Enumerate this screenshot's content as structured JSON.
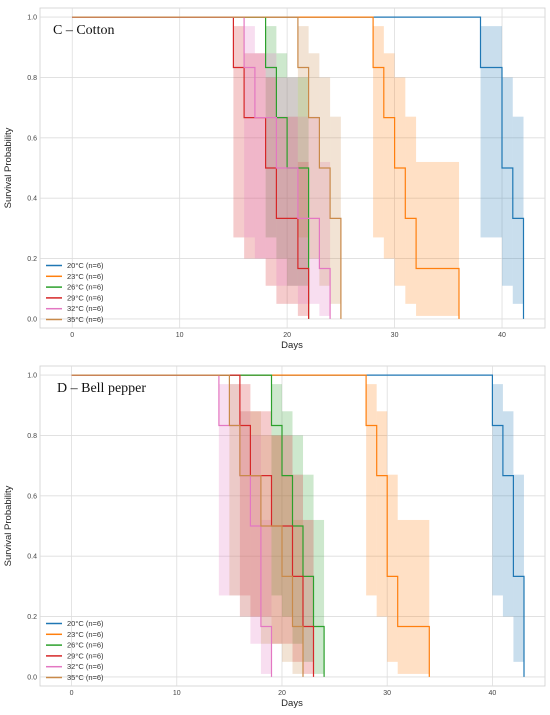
{
  "chart_data": [
    {
      "type": "line",
      "title": "C – Cotton",
      "xlabel": "Days",
      "ylabel": "Survival Probability",
      "xlim": [
        -3,
        44
      ],
      "ylim": [
        -0.03,
        1.03
      ],
      "xticks": [
        0,
        10,
        20,
        30,
        40
      ],
      "yticks": [
        0.0,
        0.2,
        0.4,
        0.6,
        0.8,
        1.0
      ],
      "grid": true,
      "legend_position": "lower-left",
      "series": [
        {
          "name": "20°C (n=6)",
          "color": "#1f77b4",
          "x": [
            0,
            38,
            38,
            40,
            40,
            41,
            41,
            42,
            42
          ],
          "y": [
            1.0,
            1.0,
            0.833,
            0.833,
            0.5,
            0.5,
            0.333,
            0.333,
            0.0
          ],
          "ci_x": [
            38,
            40,
            41,
            42
          ],
          "ci_lo": [
            0.27,
            0.11,
            0.05,
            0.0
          ],
          "ci_hi": [
            0.97,
            0.8,
            0.67,
            0.67
          ]
        },
        {
          "name": "23°C (n=6)",
          "color": "#ff7f0e",
          "x": [
            0,
            28,
            28,
            29,
            29,
            30,
            30,
            31,
            31,
            32,
            32,
            36,
            36
          ],
          "y": [
            1.0,
            1.0,
            0.833,
            0.833,
            0.667,
            0.667,
            0.5,
            0.5,
            0.333,
            0.333,
            0.167,
            0.167,
            0.0
          ],
          "ci_x": [
            28,
            29,
            30,
            31,
            32,
            36
          ],
          "ci_lo": [
            0.27,
            0.2,
            0.11,
            0.05,
            0.01,
            0.0
          ],
          "ci_hi": [
            0.97,
            0.88,
            0.8,
            0.67,
            0.52,
            0.52
          ]
        },
        {
          "name": "26°C (n=6)",
          "color": "#2ca02c",
          "x": [
            0,
            18,
            18,
            19,
            19,
            20,
            20,
            22,
            22
          ],
          "y": [
            1.0,
            1.0,
            0.833,
            0.833,
            0.667,
            0.667,
            0.5,
            0.5,
            0.0
          ],
          "ci_x": [
            18,
            19,
            20,
            22
          ],
          "ci_lo": [
            0.27,
            0.2,
            0.11,
            0.0
          ],
          "ci_hi": [
            0.97,
            0.88,
            0.8,
            0.8
          ]
        },
        {
          "name": "29°C (n=6)",
          "color": "#d62728",
          "x": [
            0,
            15,
            15,
            16,
            16,
            18,
            18,
            19,
            19,
            21,
            21,
            22,
            22
          ],
          "y": [
            1.0,
            1.0,
            0.833,
            0.833,
            0.667,
            0.667,
            0.5,
            0.5,
            0.333,
            0.333,
            0.167,
            0.167,
            0.0
          ],
          "ci_x": [
            15,
            16,
            18,
            19,
            21,
            22
          ],
          "ci_lo": [
            0.27,
            0.2,
            0.11,
            0.05,
            0.01,
            0.0
          ],
          "ci_hi": [
            0.97,
            0.88,
            0.8,
            0.67,
            0.52,
            0.52
          ]
        },
        {
          "name": "32°C (n=6)",
          "color": "#e377c2",
          "x": [
            0,
            16,
            16,
            17,
            17,
            19,
            19,
            21,
            21,
            23,
            23,
            24,
            24
          ],
          "y": [
            1.0,
            1.0,
            0.833,
            0.833,
            0.667,
            0.667,
            0.5,
            0.5,
            0.333,
            0.333,
            0.167,
            0.167,
            0.0
          ],
          "ci_x": [
            16,
            17,
            19,
            21,
            23,
            24
          ],
          "ci_lo": [
            0.27,
            0.2,
            0.11,
            0.05,
            0.01,
            0.0
          ],
          "ci_hi": [
            0.97,
            0.88,
            0.8,
            0.67,
            0.52,
            0.52
          ]
        },
        {
          "name": "35°C (n=6)",
          "color": "#c98a4a",
          "x": [
            0,
            21,
            21,
            22,
            22,
            23,
            23,
            24,
            24,
            25,
            25
          ],
          "y": [
            1.0,
            1.0,
            0.833,
            0.833,
            0.667,
            0.667,
            0.5,
            0.5,
            0.333,
            0.333,
            0.0
          ],
          "ci_x": [
            21,
            22,
            23,
            24,
            25
          ],
          "ci_lo": [
            0.27,
            0.2,
            0.11,
            0.05,
            0.0
          ],
          "ci_hi": [
            0.97,
            0.88,
            0.8,
            0.67,
            0.67
          ]
        }
      ]
    },
    {
      "type": "line",
      "title": "D – Bell pepper",
      "xlabel": "Days",
      "ylabel": "Survival Probability",
      "xlim": [
        -3,
        45
      ],
      "ylim": [
        -0.03,
        1.03
      ],
      "xticks": [
        0,
        10,
        20,
        30,
        40
      ],
      "yticks": [
        0.0,
        0.2,
        0.4,
        0.6,
        0.8,
        1.0
      ],
      "grid": true,
      "legend_position": "lower-left",
      "series": [
        {
          "name": "20°C (n=6)",
          "color": "#1f77b4",
          "x": [
            0,
            40,
            40,
            41,
            41,
            42,
            42,
            43,
            43
          ],
          "y": [
            1.0,
            1.0,
            0.833,
            0.833,
            0.667,
            0.667,
            0.333,
            0.333,
            0.0
          ],
          "ci_x": [
            40,
            41,
            42,
            43
          ],
          "ci_lo": [
            0.27,
            0.2,
            0.05,
            0.0
          ],
          "ci_hi": [
            0.97,
            0.88,
            0.67,
            0.67
          ]
        },
        {
          "name": "23°C (n=6)",
          "color": "#ff7f0e",
          "x": [
            0,
            28,
            28,
            29,
            29,
            30,
            30,
            31,
            31,
            34,
            34
          ],
          "y": [
            1.0,
            1.0,
            0.833,
            0.833,
            0.667,
            0.667,
            0.333,
            0.333,
            0.167,
            0.167,
            0.0
          ],
          "ci_x": [
            28,
            29,
            30,
            31,
            34
          ],
          "ci_lo": [
            0.27,
            0.2,
            0.05,
            0.01,
            0.0
          ],
          "ci_hi": [
            0.97,
            0.88,
            0.67,
            0.52,
            0.52
          ]
        },
        {
          "name": "26°C (n=6)",
          "color": "#2ca02c",
          "x": [
            0,
            19,
            19,
            20,
            20,
            21,
            21,
            22,
            22,
            23,
            23,
            24,
            24
          ],
          "y": [
            1.0,
            1.0,
            0.833,
            0.833,
            0.667,
            0.667,
            0.5,
            0.5,
            0.333,
            0.333,
            0.167,
            0.167,
            0.0
          ],
          "ci_x": [
            19,
            20,
            21,
            22,
            23,
            24
          ],
          "ci_lo": [
            0.27,
            0.2,
            0.11,
            0.05,
            0.01,
            0.0
          ],
          "ci_hi": [
            0.97,
            0.88,
            0.8,
            0.67,
            0.52,
            0.52
          ]
        },
        {
          "name": "29°C (n=6)",
          "color": "#d62728",
          "x": [
            0,
            16,
            16,
            17,
            17,
            19,
            19,
            21,
            21,
            22,
            22,
            23,
            23
          ],
          "y": [
            1.0,
            1.0,
            0.833,
            0.833,
            0.667,
            0.667,
            0.5,
            0.5,
            0.333,
            0.333,
            0.167,
            0.167,
            0.0
          ],
          "ci_x": [
            16,
            17,
            19,
            21,
            22,
            23
          ],
          "ci_lo": [
            0.27,
            0.2,
            0.11,
            0.05,
            0.01,
            0.0
          ],
          "ci_hi": [
            0.97,
            0.88,
            0.8,
            0.67,
            0.52,
            0.52
          ]
        },
        {
          "name": "32°C (n=6)",
          "color": "#e377c2",
          "x": [
            0,
            14,
            14,
            16,
            16,
            17,
            17,
            18,
            18,
            19,
            19
          ],
          "y": [
            1.0,
            1.0,
            0.833,
            0.833,
            0.667,
            0.667,
            0.5,
            0.5,
            0.167,
            0.167,
            0.0
          ],
          "ci_x": [
            14,
            16,
            17,
            18,
            19
          ],
          "ci_lo": [
            0.27,
            0.2,
            0.11,
            0.01,
            0.0
          ],
          "ci_hi": [
            0.97,
            0.88,
            0.8,
            0.52,
            0.52
          ]
        },
        {
          "name": "35°C (n=6)",
          "color": "#c98a4a",
          "x": [
            0,
            15,
            15,
            16,
            16,
            18,
            18,
            20,
            20,
            21,
            21,
            22,
            22
          ],
          "y": [
            1.0,
            1.0,
            0.833,
            0.833,
            0.667,
            0.667,
            0.5,
            0.5,
            0.333,
            0.333,
            0.167,
            0.167,
            0.0
          ],
          "ci_x": [
            15,
            16,
            18,
            20,
            21,
            22
          ],
          "ci_lo": [
            0.27,
            0.2,
            0.11,
            0.05,
            0.01,
            0.0
          ],
          "ci_hi": [
            0.97,
            0.88,
            0.8,
            0.67,
            0.52,
            0.52
          ]
        }
      ]
    }
  ]
}
